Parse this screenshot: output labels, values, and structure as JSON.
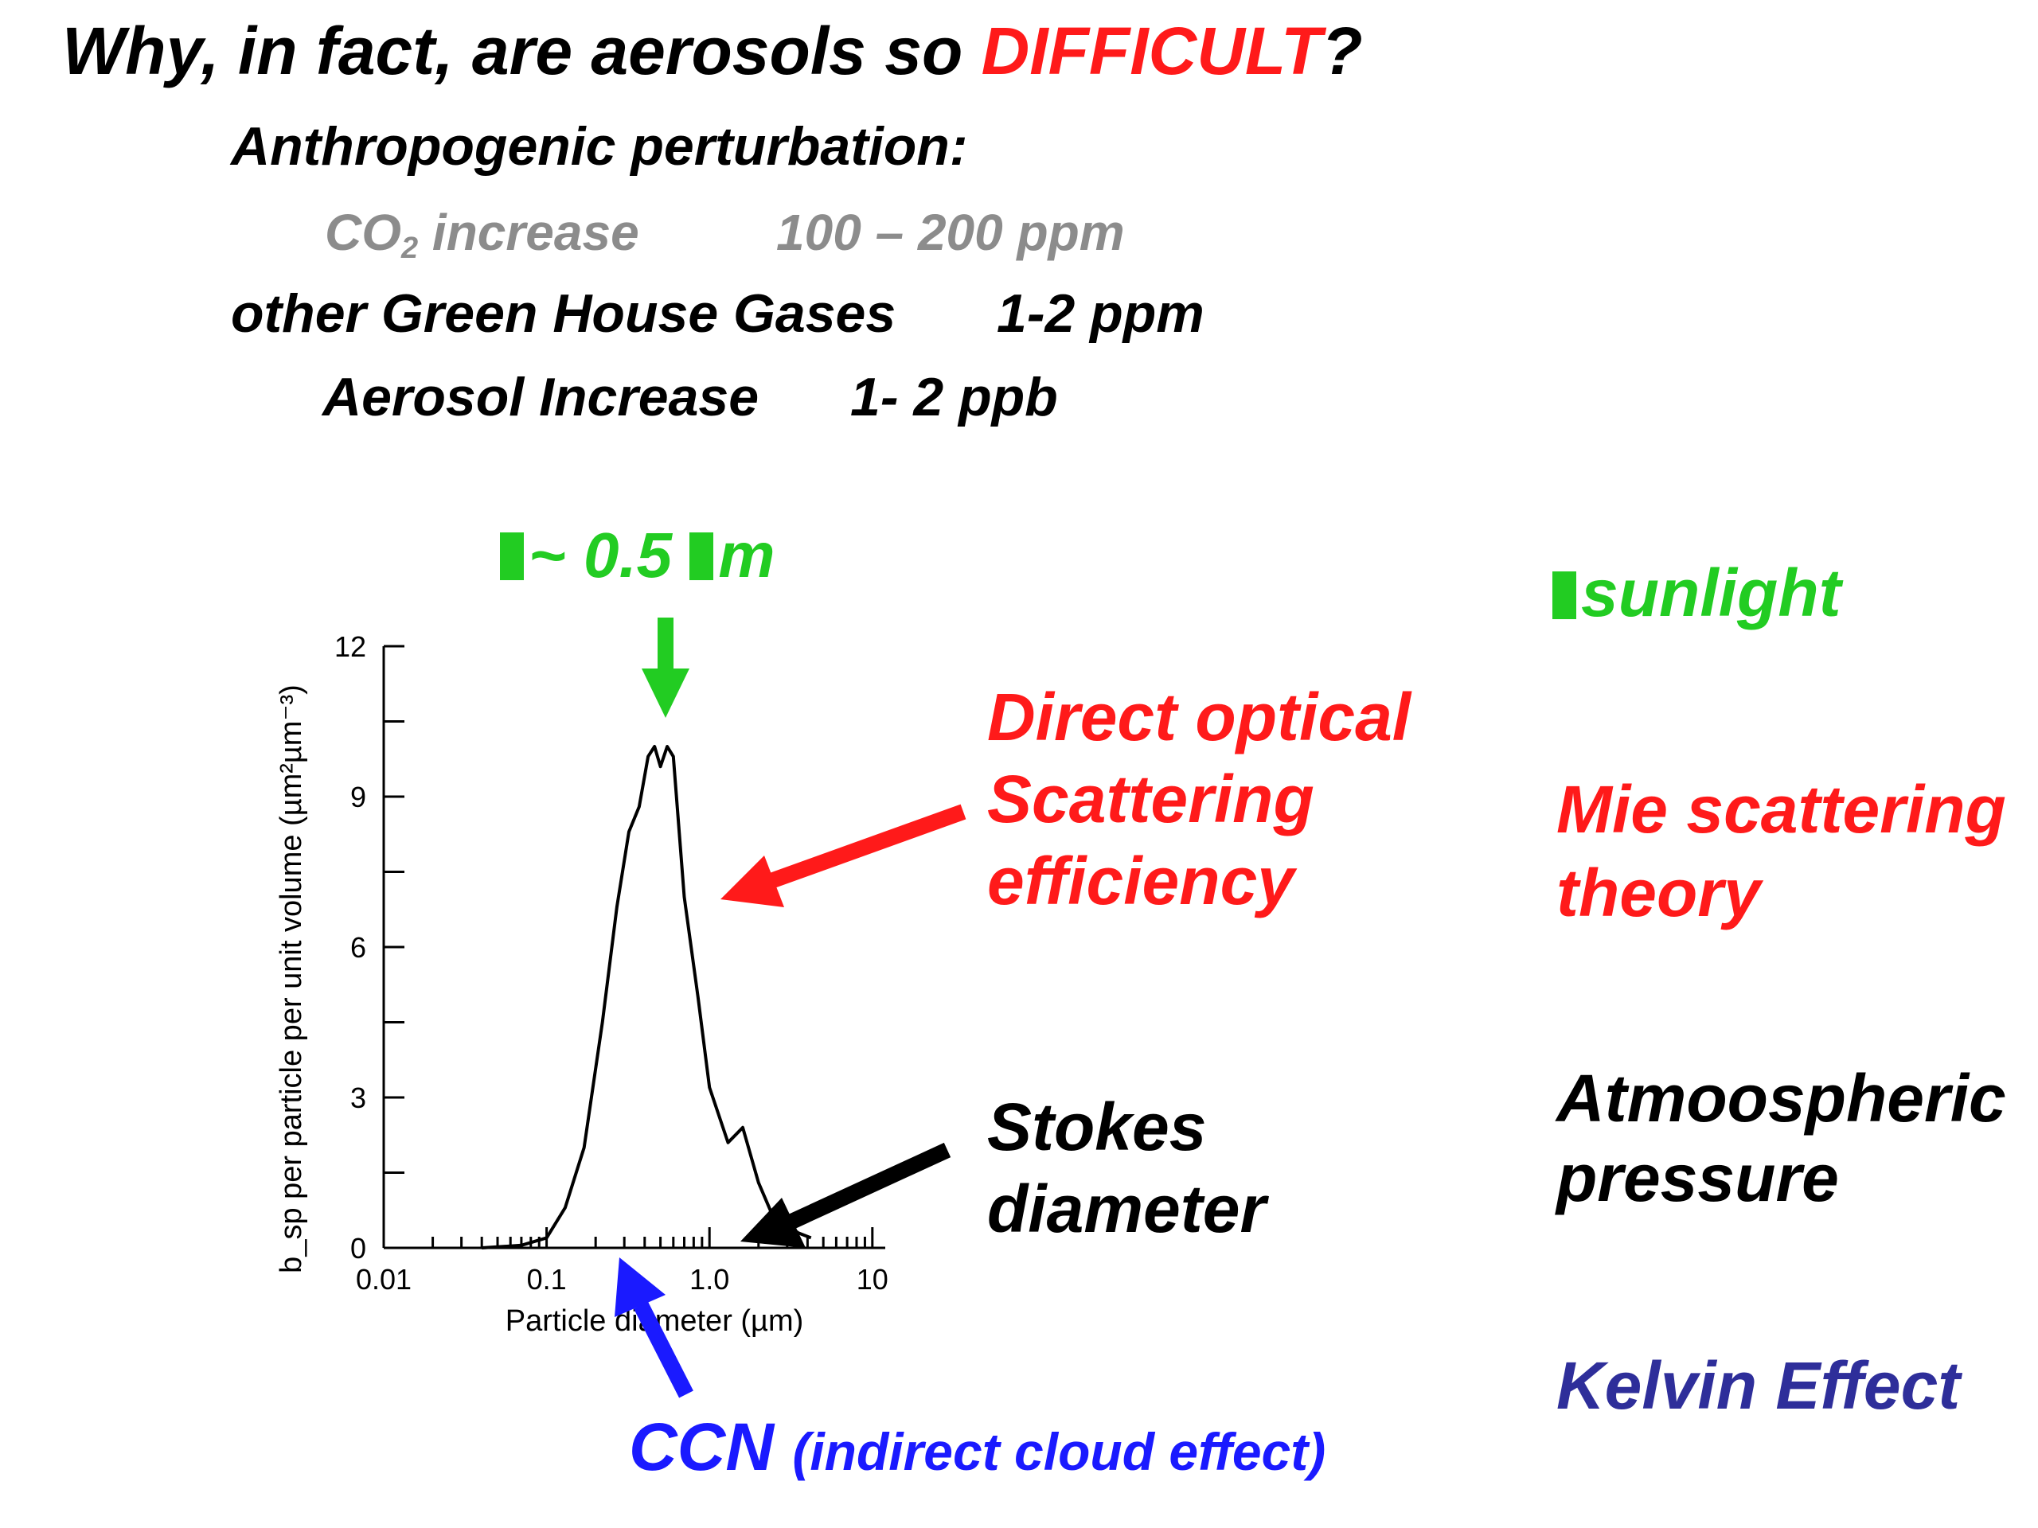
{
  "title": {
    "text": "Why, in fact, are aerosols so ",
    "highlight": "DIFFICULT",
    "end": "?"
  },
  "perturbation": {
    "heading": "Anthropogenic perturbation:",
    "co2_label": "CO",
    "co2_sub": "2",
    "co2_rest": " increase",
    "co2_value": "100 – 200 ppm",
    "ghg_label": "other Green House Gases",
    "ghg_value": "1-2 ppm",
    "aerosol_label": "Aerosol Increase",
    "aerosol_value": "1- 2 ppb"
  },
  "annotations": {
    "lambda_text": "~ 0.5",
    "lambda_unit": "m",
    "sunlight": "sunlight",
    "direct_optical": [
      "Direct optical",
      "Scattering",
      "efficiency"
    ],
    "mie": [
      "Mie scattering",
      "theory"
    ],
    "stokes": [
      "Stokes",
      "diameter"
    ],
    "atmospheric": [
      "Atmoospheric",
      "pressure"
    ],
    "kelvin": "Kelvin Effect",
    "ccn": "CCN",
    "ccn_detail": "(indirect cloud effect)"
  },
  "colors": {
    "red": "#ff1a1a",
    "green": "#22cc22",
    "blue": "#1a1aff",
    "navy": "#2e2e9a",
    "gray": "#8c8c8c"
  },
  "chart_data": {
    "type": "line",
    "xscale": "log",
    "xlim": [
      0.01,
      12
    ],
    "ylim": [
      0,
      12
    ],
    "xlabel": "Particle diameter (µm)",
    "ylabel": "b_sp per particle per unit volume (µm²µm⁻³)",
    "xticklabels": [
      "0.01",
      "0.1",
      "1.0",
      "10"
    ],
    "xtickvalues": [
      0.01,
      0.1,
      1.0,
      10
    ],
    "yticklabels": [
      "0",
      "3",
      "6",
      "9",
      "12"
    ],
    "ytickvalues": [
      0,
      3,
      6,
      9,
      12
    ],
    "series": [
      {
        "x": [
          0.04,
          0.07,
          0.1,
          0.13,
          0.17,
          0.22,
          0.27,
          0.32,
          0.37,
          0.42,
          0.46,
          0.5,
          0.55,
          0.6,
          0.7,
          0.85,
          1.0,
          1.3,
          1.6,
          2.0,
          2.4,
          2.9,
          3.5,
          4.2
        ],
        "y": [
          0.0,
          0.05,
          0.2,
          0.8,
          2.0,
          4.5,
          6.8,
          8.3,
          8.8,
          9.8,
          10.0,
          9.6,
          10.0,
          9.8,
          7.0,
          5.0,
          3.2,
          2.1,
          2.4,
          1.3,
          0.7,
          0.5,
          0.3,
          0.2
        ]
      }
    ]
  }
}
